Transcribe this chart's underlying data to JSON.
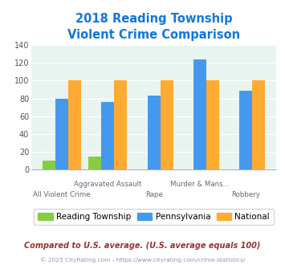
{
  "title": "2018 Reading Township\nViolent Crime Comparison",
  "categories": [
    "All Violent Crime",
    "Aggravated Assault",
    "Rape",
    "Murder & Mans...",
    "Robbery"
  ],
  "reading_township": [
    10,
    15,
    0,
    0,
    0
  ],
  "pennsylvania": [
    80,
    76,
    83,
    124,
    89
  ],
  "national": [
    100,
    100,
    100,
    100,
    100
  ],
  "colors": {
    "reading": "#88cc44",
    "pennsylvania": "#4499ee",
    "national": "#ffaa33"
  },
  "ylim": [
    0,
    140
  ],
  "yticks": [
    0,
    20,
    40,
    60,
    80,
    100,
    120,
    140
  ],
  "plot_bg": "#e8f4f0",
  "title_color": "#1177dd",
  "footer_text": "Compared to U.S. average. (U.S. average equals 100)",
  "footer_color": "#993333",
  "copyright_text": "© 2025 CityRating.com - https://www.cityrating.com/crime-statistics/",
  "copyright_color": "#8899bb",
  "legend_labels": [
    "Reading Township",
    "Pennsylvania",
    "National"
  ],
  "bar_width": 0.28,
  "x_labels_lower": [
    "All Violent Crime",
    "Rape",
    "Robbery"
  ],
  "x_labels_lower_pos": [
    0,
    2,
    4
  ],
  "x_labels_upper": [
    "Aggravated Assault",
    "Murder & Mans..."
  ],
  "x_labels_upper_pos": [
    1,
    3
  ]
}
